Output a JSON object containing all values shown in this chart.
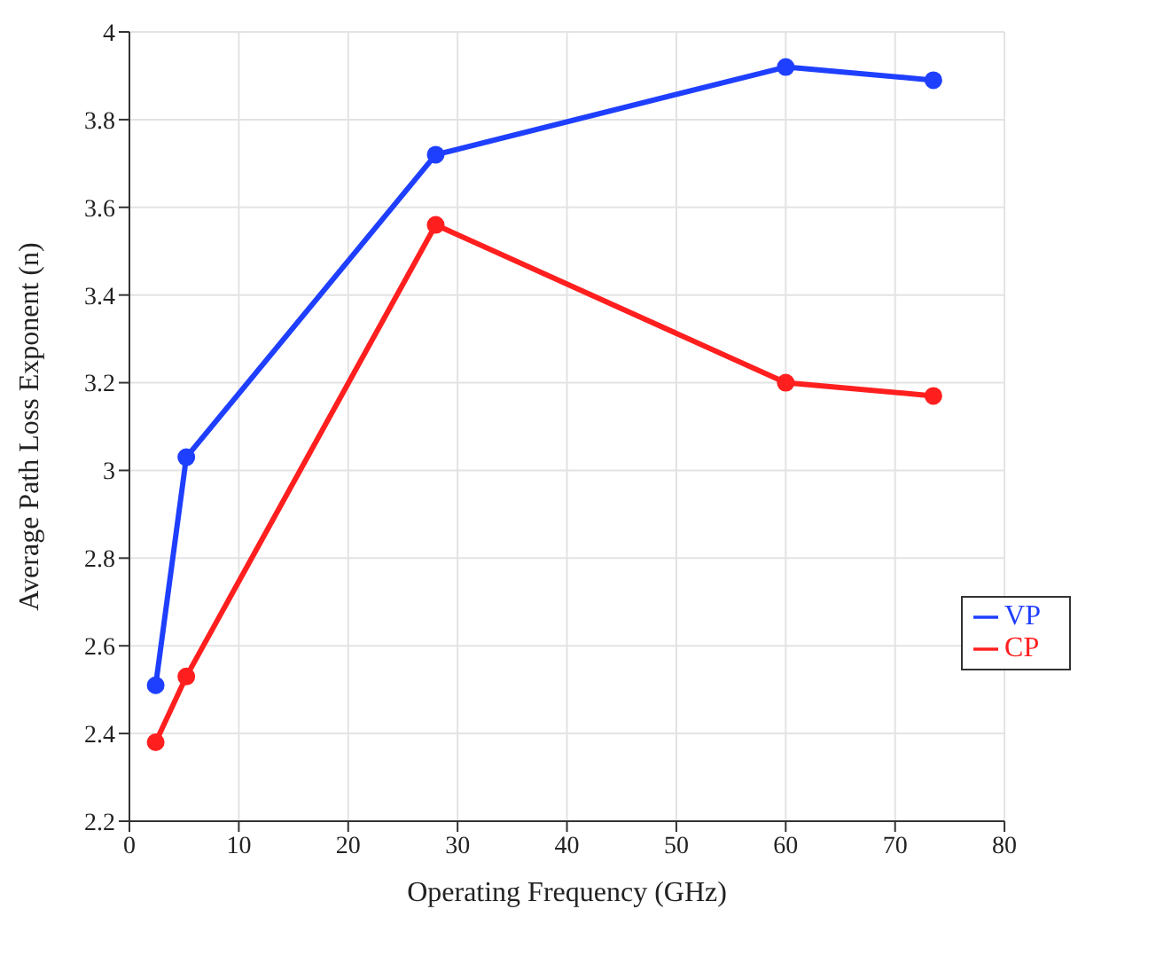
{
  "chart_data": {
    "type": "line",
    "xlabel": "Operating Frequency (GHz)",
    "ylabel": "Average Path Loss Exponent (n)",
    "x": [
      2.4,
      5.2,
      28,
      60,
      73.5
    ],
    "series": [
      {
        "name": "VP",
        "color": "#1f3fff",
        "values": [
          2.51,
          3.03,
          3.72,
          3.92,
          3.89
        ]
      },
      {
        "name": "CP",
        "color": "#ff1f1f",
        "values": [
          2.38,
          2.53,
          3.56,
          3.2,
          3.17
        ]
      }
    ],
    "xlim": [
      0,
      80
    ],
    "xticks": [
      0,
      10,
      20,
      30,
      40,
      50,
      60,
      70,
      80
    ],
    "ylim": [
      2.2,
      4
    ],
    "yticks": [
      2.2,
      2.4,
      2.6,
      2.8,
      3,
      3.2,
      3.4,
      3.6,
      3.8,
      4
    ],
    "grid": true,
    "legend": "right",
    "marker": "circle",
    "line_style": "solid"
  }
}
